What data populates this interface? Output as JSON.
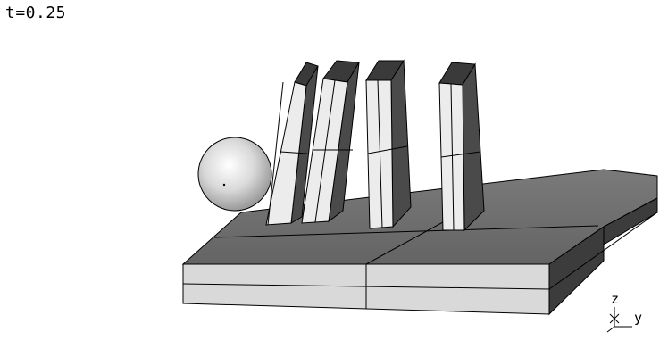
{
  "viewport": {
    "time_readout": "t=0.25",
    "axes": {
      "z_label": "z",
      "y_label": "y"
    },
    "objects": {
      "ball": "sphere",
      "dominoes": [
        "domino-1",
        "domino-2",
        "domino-3",
        "domino-4"
      ],
      "base": "slab"
    }
  },
  "colors": {
    "background": "#ffffff",
    "domino_light": "#eeeeee",
    "domino_dark": "#4a4a4a",
    "slab_top": "#6e6e6e",
    "slab_side": "#d8d8d8",
    "slab_right": "#3c3c3c",
    "edge": "#000000"
  }
}
